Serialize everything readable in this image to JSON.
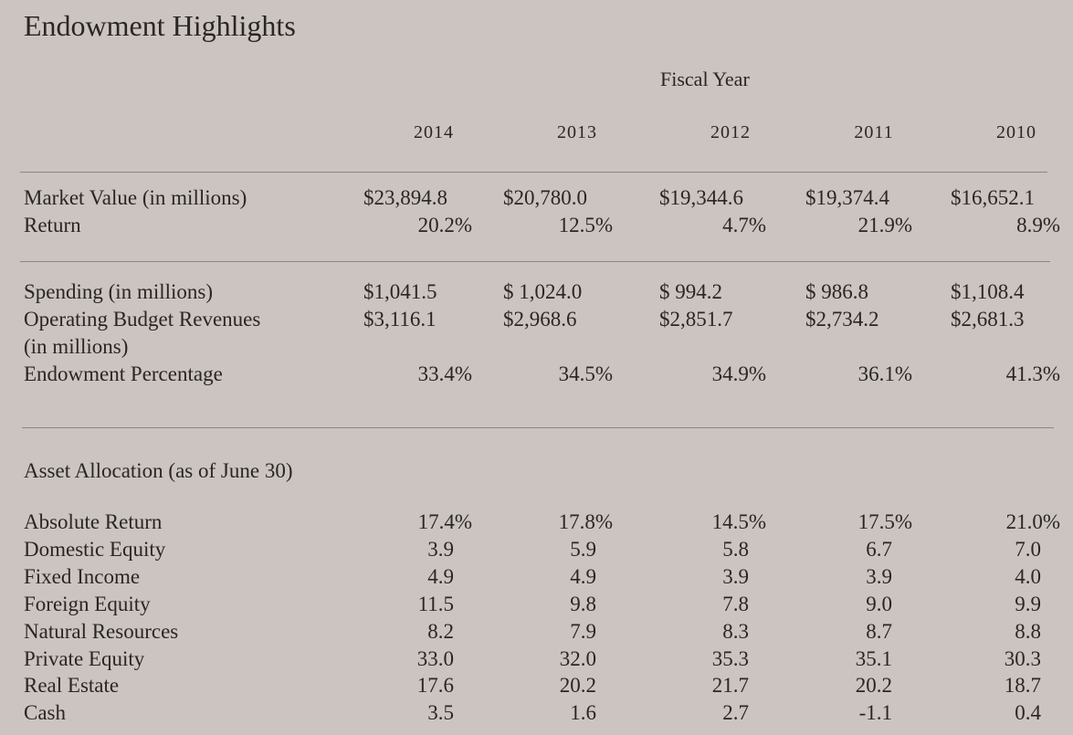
{
  "title": "Endowment Highlights",
  "header": {
    "group_label": "Fiscal Year",
    "years": [
      "2014",
      "2013",
      "2012",
      "2011",
      "2010"
    ]
  },
  "section1": [
    {
      "label": "Market Value (in millions)",
      "values": [
        "$23,894.8",
        "$20,780.0",
        "$19,344.6",
        "$19,374.4",
        "$16,652.1"
      ]
    },
    {
      "label": "Return",
      "values": [
        "20.2%",
        "12.5%",
        "4.7%",
        "21.9%",
        "8.9%"
      ]
    }
  ],
  "section2": [
    {
      "label": "Spending (in millions)",
      "values": [
        "$1,041.5",
        "$ 1,024.0",
        "$ 994.2",
        "$ 986.8",
        "$1,108.4"
      ]
    },
    {
      "label": "Operating Budget Revenues",
      "label_line2": "(in millions)",
      "values": [
        "$3,116.1",
        "$2,968.6",
        "$2,851.7",
        "$2,734.2",
        "$2,681.3"
      ]
    },
    {
      "label": "Endowment Percentage",
      "values": [
        "33.4%",
        "34.5%",
        "34.9%",
        "36.1%",
        "41.3%"
      ]
    }
  ],
  "asset_allocation": {
    "heading": "Asset Allocation (as of June 30)",
    "rows": [
      {
        "label": "Absolute Return",
        "values": [
          "17.4%",
          "17.8%",
          "14.5%",
          "17.5%",
          "21.0%"
        ]
      },
      {
        "label": "Domestic Equity",
        "values": [
          "3.9",
          "5.9",
          "5.8",
          "6.7",
          "7.0"
        ]
      },
      {
        "label": "Fixed Income",
        "values": [
          "4.9",
          "4.9",
          "3.9",
          "3.9",
          "4.0"
        ]
      },
      {
        "label": "Foreign Equity",
        "values": [
          "11.5",
          "9.8",
          "7.8",
          "9.0",
          "9.9"
        ]
      },
      {
        "label": "Natural Resources",
        "values": [
          "8.2",
          "7.9",
          "8.3",
          "8.7",
          "8.8"
        ]
      },
      {
        "label": "Private Equity",
        "values": [
          "33.0",
          "32.0",
          "35.3",
          "35.1",
          "30.3"
        ]
      },
      {
        "label": "Real Estate",
        "values": [
          "17.6",
          "20.2",
          "21.7",
          "20.2",
          "18.7"
        ]
      },
      {
        "label": "Cash",
        "values": [
          "3.5",
          "1.6",
          "2.7",
          "-1.1",
          "0.4"
        ]
      }
    ]
  }
}
